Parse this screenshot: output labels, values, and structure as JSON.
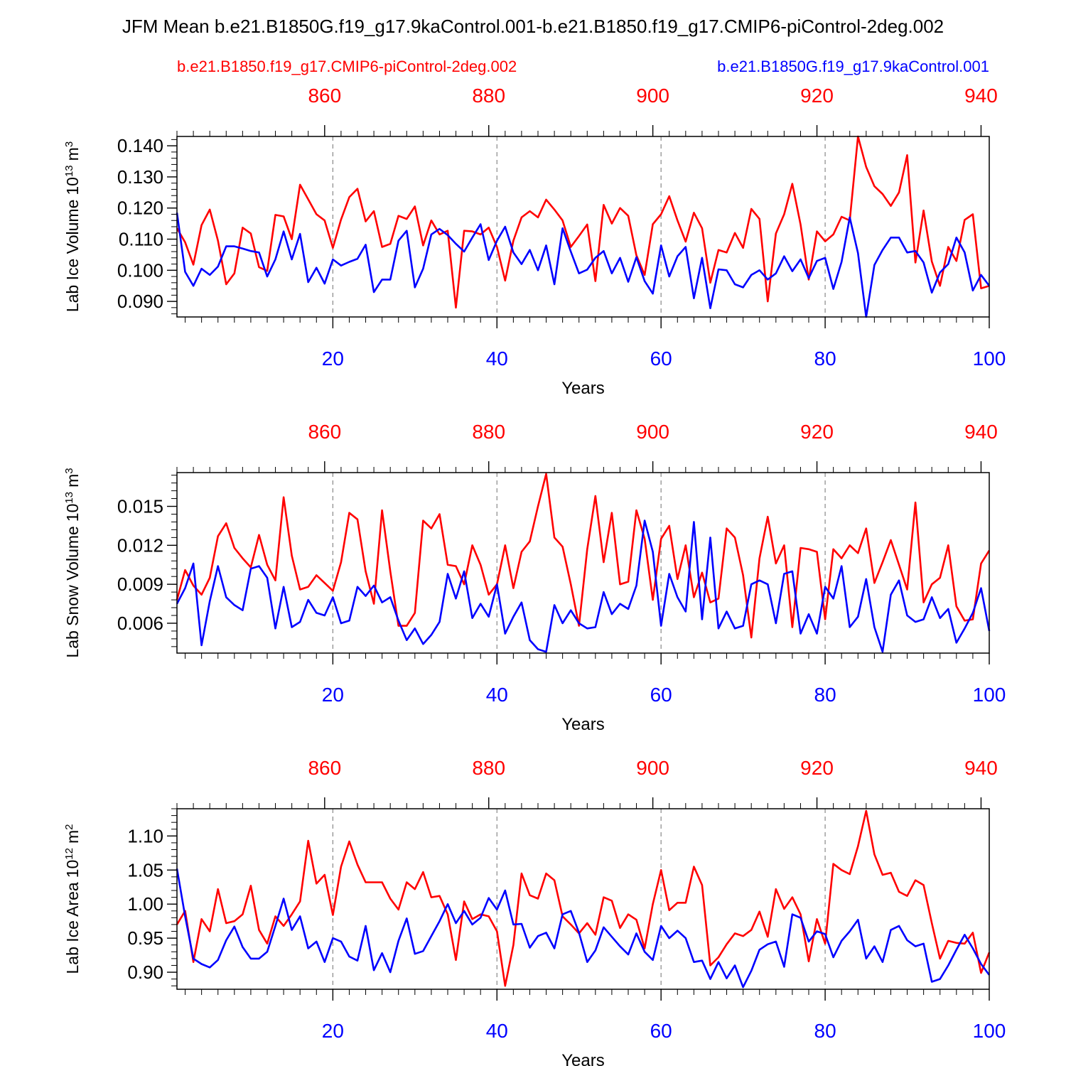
{
  "title": "JFM Mean b.e21.B1850G.f19_g17.9kaControl.001-b.e21.B1850.f19_g17.CMIP6-piControl-2deg.002",
  "legend": {
    "left": "b.e21.B1850.f19_g17.CMIP6-piControl-2deg.002",
    "right": "b.e21.B1850G.f19_g17.9kaControl.001"
  },
  "colors": {
    "red": "#ff0000",
    "blue": "#0000ff",
    "axis": "#000000",
    "grid": "#888888"
  },
  "chart_data": [
    {
      "type": "line",
      "title": "",
      "ylabel": "Lab Ice Volume",
      "yunit_base": "10",
      "yunit_exp": "13",
      "yunit_suffix": "m",
      "yunit_suffix_exp": "3",
      "xlabel": "Years",
      "xlim": [
        1,
        100
      ],
      "x_bottom_ticks": [
        "20",
        "40",
        "60",
        "80",
        "100"
      ],
      "x_top_range": [
        842,
        941
      ],
      "x_top_ticks": [
        "860",
        "880",
        "900",
        "920",
        "940"
      ],
      "ylim": [
        0.085,
        0.143
      ],
      "y_ticks": [
        "0.090",
        "0.100",
        "0.110",
        "0.120",
        "0.130",
        "0.140"
      ],
      "y_tick_values": [
        0.09,
        0.1,
        0.11,
        0.12,
        0.13,
        0.14
      ],
      "y_minor_step": 0.002,
      "x": [
        1,
        2,
        3,
        4,
        5,
        6,
        7,
        8,
        9,
        10,
        11,
        12,
        13,
        14,
        15,
        16,
        17,
        18,
        19,
        20,
        21,
        22,
        23,
        24,
        25,
        26,
        27,
        28,
        29,
        30,
        31,
        32,
        33,
        34,
        35,
        36,
        37,
        38,
        39,
        40,
        41,
        42,
        43,
        44,
        45,
        46,
        47,
        48,
        49,
        50,
        51,
        52,
        53,
        54,
        55,
        56,
        57,
        58,
        59,
        60,
        61,
        62,
        63,
        64,
        65,
        66,
        67,
        68,
        69,
        70,
        71,
        72,
        73,
        74,
        75,
        76,
        77,
        78,
        79,
        80,
        81,
        82,
        83,
        84,
        85,
        86,
        87,
        88,
        89,
        90,
        91,
        92,
        93,
        94,
        95,
        96,
        97,
        98,
        99,
        100
      ],
      "series": [
        {
          "name": "b.e21.B1850.f19_g17.CMIP6-piControl-2deg.002",
          "color": "#ff0000",
          "values": [
            0.1135,
            0.109,
            0.1018,
            0.1145,
            0.1195,
            0.1095,
            0.0955,
            0.099,
            0.1137,
            0.1118,
            0.101,
            0.0998,
            0.1178,
            0.1173,
            0.11,
            0.1275,
            0.1228,
            0.118,
            0.116,
            0.1072,
            0.1163,
            0.1235,
            0.1262,
            0.1157,
            0.119,
            0.1075,
            0.1085,
            0.1175,
            0.1165,
            0.1205,
            0.108,
            0.116,
            0.1115,
            0.1127,
            0.088,
            0.1127,
            0.1125,
            0.1115,
            0.1137,
            0.1075,
            0.0967,
            0.1095,
            0.117,
            0.119,
            0.117,
            0.1227,
            0.1195,
            0.116,
            0.1075,
            0.111,
            0.1147,
            0.0965,
            0.121,
            0.115,
            0.12,
            0.1175,
            0.1048,
            0.0985,
            0.1148,
            0.118,
            0.1238,
            0.116,
            0.1092,
            0.1185,
            0.1135,
            0.096,
            0.1065,
            0.1057,
            0.112,
            0.1072,
            0.1197,
            0.1165,
            0.09,
            0.1118,
            0.118,
            0.1278,
            0.1147,
            0.097,
            0.1125,
            0.1093,
            0.1115,
            0.1172,
            0.116,
            0.143,
            0.1332,
            0.127,
            0.1245,
            0.1207,
            0.125,
            0.137,
            0.1025,
            0.1192,
            0.1028,
            0.095,
            0.1075,
            0.103,
            0.1162,
            0.118,
            0.0942,
            0.095
          ]
        },
        {
          "name": "b.e21.B1850G.f19_g17.9kaControl.001",
          "color": "#0000ff",
          "values": [
            0.1185,
            0.0995,
            0.095,
            0.1005,
            0.0985,
            0.1012,
            0.1077,
            0.1077,
            0.107,
            0.1062,
            0.1057,
            0.098,
            0.1035,
            0.1125,
            0.1035,
            0.1117,
            0.0962,
            0.1008,
            0.0957,
            0.1035,
            0.1015,
            0.1027,
            0.1037,
            0.1082,
            0.093,
            0.097,
            0.097,
            0.1095,
            0.1127,
            0.0945,
            0.1005,
            0.1115,
            0.1133,
            0.1113,
            0.1085,
            0.106,
            0.1105,
            0.1148,
            0.1033,
            0.1095,
            0.114,
            0.1057,
            0.102,
            0.1065,
            0.1,
            0.108,
            0.0955,
            0.1135,
            0.106,
            0.099,
            0.1002,
            0.104,
            0.1062,
            0.099,
            0.104,
            0.0963,
            0.1042,
            0.0965,
            0.0925,
            0.108,
            0.098,
            0.1045,
            0.1075,
            0.091,
            0.104,
            0.0878,
            0.1003,
            0.1,
            0.0955,
            0.0945,
            0.0985,
            0.1,
            0.097,
            0.099,
            0.1045,
            0.0997,
            0.1035,
            0.0975,
            0.103,
            0.104,
            0.094,
            0.1027,
            0.117,
            0.1055,
            0.085,
            0.1017,
            0.1065,
            0.1105,
            0.1105,
            0.1057,
            0.1062,
            0.1025,
            0.0928,
            0.0993,
            0.102,
            0.1105,
            0.1057,
            0.0935,
            0.0985,
            0.095
          ]
        }
      ]
    },
    {
      "type": "line",
      "title": "",
      "ylabel": "Lab Snow Volume",
      "yunit_base": "10",
      "yunit_exp": "13",
      "yunit_suffix": "m",
      "yunit_suffix_exp": "3",
      "xlabel": "Years",
      "xlim": [
        1,
        100
      ],
      "x_bottom_ticks": [
        "20",
        "40",
        "60",
        "80",
        "100"
      ],
      "x_top_range": [
        842,
        941
      ],
      "x_top_ticks": [
        "860",
        "880",
        "900",
        "920",
        "940"
      ],
      "ylim": [
        0.0037,
        0.0176
      ],
      "y_ticks": [
        "0.006",
        "0.009",
        "0.012",
        "0.015"
      ],
      "y_tick_values": [
        0.006,
        0.009,
        0.012,
        0.015
      ],
      "y_minor_step": 0.0006,
      "x": [
        1,
        2,
        3,
        4,
        5,
        6,
        7,
        8,
        9,
        10,
        11,
        12,
        13,
        14,
        15,
        16,
        17,
        18,
        19,
        20,
        21,
        22,
        23,
        24,
        25,
        26,
        27,
        28,
        29,
        30,
        31,
        32,
        33,
        34,
        35,
        36,
        37,
        38,
        39,
        40,
        41,
        42,
        43,
        44,
        45,
        46,
        47,
        48,
        49,
        50,
        51,
        52,
        53,
        54,
        55,
        56,
        57,
        58,
        59,
        60,
        61,
        62,
        63,
        64,
        65,
        66,
        67,
        68,
        69,
        70,
        71,
        72,
        73,
        74,
        75,
        76,
        77,
        78,
        79,
        80,
        81,
        82,
        83,
        84,
        85,
        86,
        87,
        88,
        89,
        90,
        91,
        92,
        93,
        94,
        95,
        96,
        97,
        98,
        99,
        100
      ],
      "series": [
        {
          "name": "b.e21.B1850.f19_g17.CMIP6-piControl-2deg.002",
          "color": "#ff0000",
          "values": [
            0.0078,
            0.0101,
            0.0089,
            0.0082,
            0.0095,
            0.0127,
            0.0137,
            0.0118,
            0.011,
            0.0103,
            0.0128,
            0.0105,
            0.0093,
            0.0157,
            0.0112,
            0.0086,
            0.0088,
            0.0097,
            0.0091,
            0.0085,
            0.0107,
            0.0145,
            0.014,
            0.01,
            0.0075,
            0.0147,
            0.01,
            0.0058,
            0.0058,
            0.0068,
            0.0139,
            0.0133,
            0.0144,
            0.0105,
            0.0104,
            0.009,
            0.012,
            0.0105,
            0.0082,
            0.009,
            0.012,
            0.0087,
            0.0115,
            0.0123,
            0.015,
            0.0175,
            0.0126,
            0.0119,
            0.009,
            0.0058,
            0.0117,
            0.0158,
            0.0107,
            0.0145,
            0.009,
            0.0092,
            0.0147,
            0.0125,
            0.0078,
            0.0125,
            0.0135,
            0.0094,
            0.012,
            0.008,
            0.0099,
            0.0076,
            0.0079,
            0.0133,
            0.0126,
            0.0097,
            0.0049,
            0.011,
            0.0142,
            0.0106,
            0.012,
            0.0057,
            0.0118,
            0.0117,
            0.0115,
            0.0063,
            0.0117,
            0.011,
            0.012,
            0.0114,
            0.0133,
            0.0091,
            0.0107,
            0.0124,
            0.0105,
            0.0086,
            0.0153,
            0.0076,
            0.009,
            0.0095,
            0.012,
            0.0073,
            0.0062,
            0.0063,
            0.0106,
            0.0116
          ]
        },
        {
          "name": "b.e21.B1850G.f19_g17.9kaControl.001",
          "color": "#0000ff",
          "values": [
            0.0075,
            0.0087,
            0.0106,
            0.0043,
            0.0077,
            0.0104,
            0.008,
            0.0074,
            0.007,
            0.0102,
            0.0104,
            0.0095,
            0.0056,
            0.0088,
            0.0057,
            0.0061,
            0.0078,
            0.0068,
            0.0066,
            0.008,
            0.006,
            0.0062,
            0.0088,
            0.0081,
            0.0089,
            0.0076,
            0.008,
            0.0062,
            0.0047,
            0.0056,
            0.0044,
            0.0051,
            0.0061,
            0.0098,
            0.0079,
            0.01,
            0.0064,
            0.0075,
            0.0065,
            0.009,
            0.0052,
            0.0065,
            0.0076,
            0.0047,
            0.004,
            0.0038,
            0.0074,
            0.006,
            0.007,
            0.006,
            0.0056,
            0.0057,
            0.0084,
            0.0067,
            0.0075,
            0.0071,
            0.0089,
            0.0139,
            0.0115,
            0.0058,
            0.0098,
            0.008,
            0.0069,
            0.0138,
            0.0063,
            0.0126,
            0.0056,
            0.0069,
            0.0056,
            0.0058,
            0.009,
            0.0093,
            0.009,
            0.006,
            0.0098,
            0.01,
            0.0052,
            0.0067,
            0.0052,
            0.0088,
            0.0079,
            0.0104,
            0.0057,
            0.0065,
            0.0094,
            0.0057,
            0.0038,
            0.0082,
            0.0093,
            0.0066,
            0.0061,
            0.0063,
            0.008,
            0.0064,
            0.0071,
            0.0045,
            0.0056,
            0.0068,
            0.0087,
            0.0054
          ]
        }
      ]
    },
    {
      "type": "line",
      "title": "",
      "ylabel": "Lab Ice Area",
      "yunit_base": "10",
      "yunit_exp": "12",
      "yunit_suffix": "m",
      "yunit_suffix_exp": "2",
      "xlabel": "Years",
      "xlim": [
        1,
        100
      ],
      "x_bottom_ticks": [
        "20",
        "40",
        "60",
        "80",
        "100"
      ],
      "x_top_range": [
        842,
        941
      ],
      "x_top_ticks": [
        "860",
        "880",
        "900",
        "920",
        "940"
      ],
      "ylim": [
        0.875,
        1.14
      ],
      "y_ticks": [
        "0.90",
        "0.95",
        "1.00",
        "1.05",
        "1.10"
      ],
      "y_tick_values": [
        0.9,
        0.95,
        1.0,
        1.05,
        1.1
      ],
      "y_minor_step": 0.01,
      "x": [
        1,
        2,
        3,
        4,
        5,
        6,
        7,
        8,
        9,
        10,
        11,
        12,
        13,
        14,
        15,
        16,
        17,
        18,
        19,
        20,
        21,
        22,
        23,
        24,
        25,
        26,
        27,
        28,
        29,
        30,
        31,
        32,
        33,
        34,
        35,
        36,
        37,
        38,
        39,
        40,
        41,
        42,
        43,
        44,
        45,
        46,
        47,
        48,
        49,
        50,
        51,
        52,
        53,
        54,
        55,
        56,
        57,
        58,
        59,
        60,
        61,
        62,
        63,
        64,
        65,
        66,
        67,
        68,
        69,
        70,
        71,
        72,
        73,
        74,
        75,
        76,
        77,
        78,
        79,
        80,
        81,
        82,
        83,
        84,
        85,
        86,
        87,
        88,
        89,
        90,
        91,
        92,
        93,
        94,
        95,
        96,
        97,
        98,
        99,
        100
      ],
      "series": [
        {
          "name": "b.e21.B1850.f19_g17.CMIP6-piControl-2deg.002",
          "color": "#ff0000",
          "values": [
            0.97,
            0.99,
            0.915,
            0.978,
            0.96,
            1.022,
            0.972,
            0.975,
            0.985,
            1.027,
            0.962,
            0.942,
            0.982,
            0.968,
            0.985,
            1.004,
            1.093,
            1.03,
            1.043,
            0.984,
            1.055,
            1.092,
            1.058,
            1.032,
            1.032,
            1.032,
            1.008,
            0.992,
            1.032,
            1.022,
            1.047,
            1.01,
            1.012,
            0.985,
            0.918,
            1.004,
            0.978,
            0.985,
            0.982,
            0.96,
            0.88,
            0.94,
            1.045,
            1.013,
            1.008,
            1.045,
            1.035,
            0.982,
            0.97,
            0.957,
            0.972,
            0.955,
            1.01,
            1.005,
            0.965,
            0.985,
            0.977,
            0.935,
            1.0,
            1.05,
            0.991,
            1.002,
            1.002,
            1.055,
            1.028,
            0.91,
            0.922,
            0.941,
            0.957,
            0.953,
            0.962,
            0.989,
            0.952,
            1.022,
            0.993,
            1.01,
            0.985,
            0.916,
            0.978,
            0.942,
            1.059,
            1.05,
            1.044,
            1.085,
            1.137,
            1.073,
            1.043,
            1.046,
            1.018,
            1.012,
            1.035,
            1.028,
            0.972,
            0.92,
            0.946,
            0.943,
            0.942,
            0.958,
            0.899,
            0.929
          ]
        },
        {
          "name": "b.e21.B1850G.f19_g17.9kaControl.001",
          "color": "#0000ff",
          "values": [
            1.052,
            0.982,
            0.92,
            0.912,
            0.907,
            0.918,
            0.947,
            0.967,
            0.937,
            0.92,
            0.92,
            0.93,
            0.968,
            1.008,
            0.962,
            0.982,
            0.935,
            0.945,
            0.915,
            0.95,
            0.945,
            0.923,
            0.917,
            0.968,
            0.903,
            0.928,
            0.9,
            0.946,
            0.979,
            0.927,
            0.931,
            0.953,
            0.975,
            1.0,
            0.972,
            0.99,
            0.97,
            0.98,
            1.009,
            0.992,
            1.02,
            0.97,
            0.971,
            0.936,
            0.953,
            0.958,
            0.935,
            0.985,
            0.99,
            0.958,
            0.915,
            0.932,
            0.966,
            0.952,
            0.938,
            0.926,
            0.957,
            0.93,
            0.918,
            0.968,
            0.95,
            0.961,
            0.95,
            0.915,
            0.917,
            0.89,
            0.915,
            0.891,
            0.91,
            0.878,
            0.902,
            0.933,
            0.941,
            0.945,
            0.908,
            0.985,
            0.98,
            0.945,
            0.96,
            0.956,
            0.922,
            0.946,
            0.96,
            0.977,
            0.92,
            0.938,
            0.915,
            0.962,
            0.968,
            0.947,
            0.938,
            0.942,
            0.886,
            0.89,
            0.91,
            0.933,
            0.955,
            0.935,
            0.912,
            0.896
          ]
        }
      ]
    }
  ]
}
